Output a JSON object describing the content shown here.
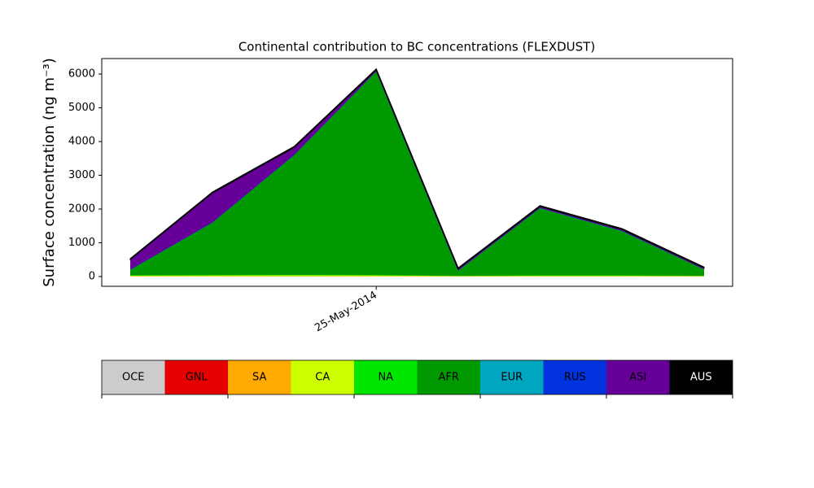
{
  "chart_data": {
    "type": "stacked_area",
    "title": "Continental contribution to BC concentrations (FLEXDUST)",
    "y_label": "Surface concentration (ng m⁻³)",
    "categories": [
      null,
      null,
      null,
      "25-May-2014",
      null,
      null,
      null,
      null
    ],
    "ylim": [
      -290,
      6460
    ],
    "yticks": [
      0,
      1000,
      2000,
      3000,
      4000,
      5000,
      6000
    ],
    "series": [
      {
        "name": "OCE",
        "color": "#cccccc",
        "values": [
          5,
          5,
          5,
          5,
          5,
          5,
          5,
          5
        ]
      },
      {
        "name": "GNL",
        "color": "#e60000",
        "values": [
          2,
          2,
          2,
          2,
          2,
          2,
          2,
          2
        ]
      },
      {
        "name": "SA",
        "color": "#ffaa00",
        "values": [
          5,
          5,
          5,
          5,
          5,
          5,
          5,
          5
        ]
      },
      {
        "name": "CA",
        "color": "#ccff00",
        "values": [
          20,
          25,
          30,
          25,
          10,
          15,
          15,
          10
        ]
      },
      {
        "name": "NA",
        "color": "#00e600",
        "values": [
          10,
          10,
          10,
          10,
          5,
          10,
          10,
          5
        ]
      },
      {
        "name": "AFR",
        "color": "#009900",
        "values": [
          160,
          1550,
          3550,
          6030,
          150,
          1990,
          1310,
          190
        ]
      },
      {
        "name": "EUR",
        "color": "#00a6bf",
        "values": [
          5,
          5,
          5,
          5,
          3,
          5,
          5,
          3
        ]
      },
      {
        "name": "RUS",
        "color": "#0033dd",
        "values": [
          5,
          5,
          5,
          5,
          3,
          5,
          5,
          3
        ]
      },
      {
        "name": "ASI",
        "color": "#660099",
        "values": [
          300,
          870,
          220,
          40,
          50,
          40,
          40,
          40
        ]
      },
      {
        "name": "AUS",
        "color": "#000000",
        "values": [
          15,
          20,
          20,
          20,
          15,
          20,
          20,
          15
        ]
      }
    ]
  }
}
